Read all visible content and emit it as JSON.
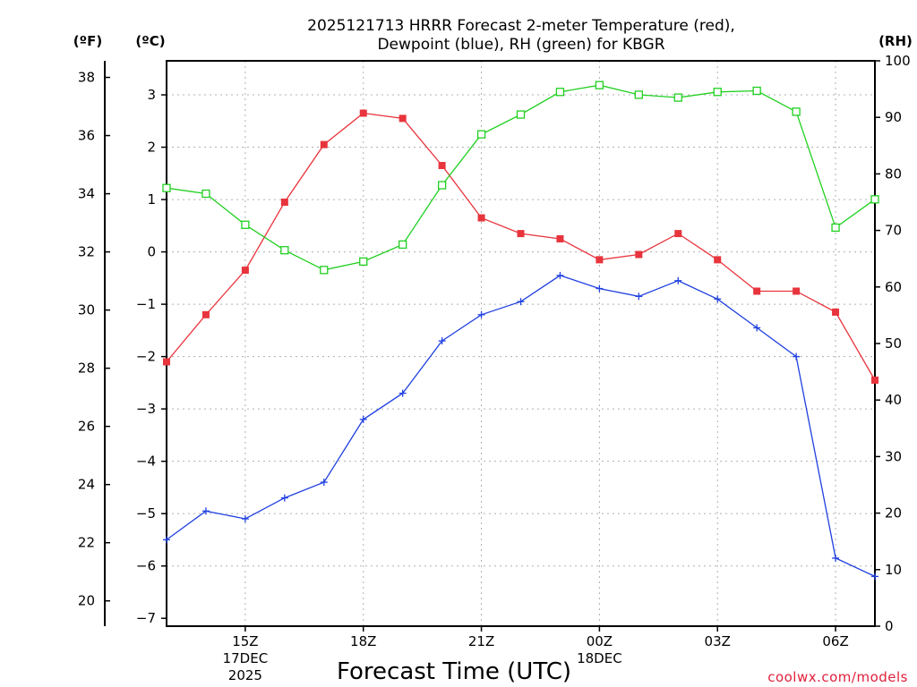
{
  "chart_data": {
    "type": "line",
    "title_line1": "2025121713 HRRR Forecast 2-meter Temperature (red),",
    "title_line2": "Dewpoint (blue), RH (green) for KBGR",
    "unit_f": "(ºF)",
    "unit_c": "(ºC)",
    "unit_rh": "(RH)",
    "xlabel": "Forecast Time (UTC)",
    "credit": "coolwx.com/models",
    "x_hours": [
      13,
      14,
      15,
      16,
      17,
      18,
      19,
      20,
      21,
      22,
      23,
      24,
      25,
      26,
      27,
      28,
      29,
      30,
      31
    ],
    "x_ticks": [
      {
        "hour": 15,
        "lines": [
          "15Z",
          "17DEC",
          "2025"
        ]
      },
      {
        "hour": 18,
        "lines": [
          "18Z"
        ]
      },
      {
        "hour": 21,
        "lines": [
          "21Z"
        ]
      },
      {
        "hour": 24,
        "lines": [
          "00Z",
          "18DEC"
        ]
      },
      {
        "hour": 27,
        "lines": [
          "03Z"
        ]
      },
      {
        "hour": 30,
        "lines": [
          "06Z"
        ]
      }
    ],
    "xlim": [
      13,
      31
    ],
    "ylim_c": [
      -7.15,
      3.65
    ],
    "yticks_c": [
      3,
      2,
      1,
      0,
      -1,
      -2,
      -3,
      -4,
      -5,
      -6,
      -7
    ],
    "yticks_f": [
      38,
      36,
      34,
      32,
      30,
      28,
      26,
      24,
      22,
      20
    ],
    "ylim_rh": [
      0,
      100
    ],
    "yticks_rh": [
      100,
      90,
      80,
      70,
      60,
      50,
      40,
      30,
      20,
      10,
      0
    ],
    "series": [
      {
        "name": "Temperature",
        "axis": "c",
        "color": "#e8343c",
        "marker": "filled-square",
        "values": [
          -2.1,
          -1.2,
          -0.35,
          0.95,
          2.05,
          2.65,
          2.55,
          1.65,
          0.65,
          0.35,
          0.25,
          -0.15,
          -0.05,
          0.35,
          -0.15,
          -0.75,
          -0.75,
          -1.15,
          -2.45
        ]
      },
      {
        "name": "Dewpoint",
        "axis": "c",
        "color": "#2040e0",
        "marker": "plus",
        "values": [
          -5.5,
          -4.95,
          -5.1,
          -4.7,
          -4.4,
          -3.2,
          -2.7,
          -1.7,
          -1.2,
          -0.95,
          -0.45,
          -0.7,
          -0.85,
          -0.55,
          -0.9,
          -1.45,
          -2.0,
          -5.85,
          -6.2
        ]
      },
      {
        "name": "RH",
        "axis": "rh",
        "color": "#20d020",
        "marker": "open-square",
        "values": [
          77.5,
          76.5,
          71,
          66.5,
          63,
          64.5,
          67.5,
          78,
          87,
          90.5,
          94.5,
          95.7,
          94,
          93.5,
          94.5,
          94.7,
          91,
          70.5,
          75.5
        ]
      }
    ]
  }
}
